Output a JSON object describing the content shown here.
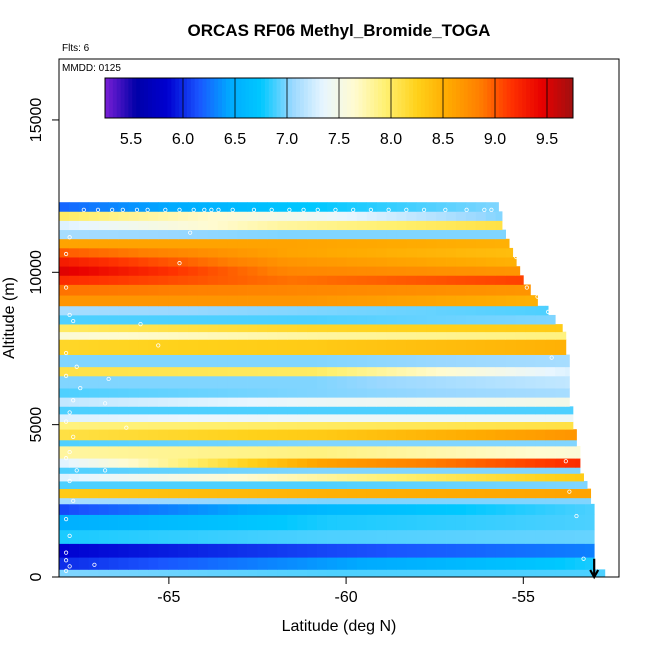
{
  "chart_data": {
    "type": "heatmap",
    "title": "ORCAS RF06 Methyl_Bromide_TOGA",
    "xlabel": "Latitude (deg N)",
    "ylabel": "Altitude (m)",
    "xlim": [
      -68.1,
      -52.3
    ],
    "ylim": [
      0,
      17000
    ],
    "x_ticks": [
      -65,
      -60,
      -55
    ],
    "x_tick_labels": [
      "-65",
      "-60",
      "-55"
    ],
    "y_ticks": [
      0,
      5000,
      10000,
      15000
    ],
    "y_tick_labels": [
      "0",
      "5000",
      "10000",
      "15000"
    ],
    "annotations": {
      "flights": "Flts: 6",
      "date": "MMDD: 0125"
    },
    "colorbar": {
      "min": 5.25,
      "max": 9.75,
      "tick_values": [
        5.5,
        6.0,
        6.5,
        7.0,
        7.5,
        8.0,
        8.5,
        9.0,
        9.5
      ],
      "tick_labels": [
        "5.5",
        "6.0",
        "6.5",
        "7.0",
        "7.5",
        "8.0",
        "8.5",
        "9.0",
        "9.5"
      ],
      "colors": [
        "#7a1fd6",
        "#0000a8",
        "#0000d0",
        "#1a55ff",
        "#00aaff",
        "#00c8ff",
        "#9ad8ff",
        "#e8f6ff",
        "#fffbd0",
        "#fff070",
        "#ffd11a",
        "#ffaa00",
        "#ff7f00",
        "#ff3300",
        "#e80000",
        "#a01010"
      ],
      "separator_values": [
        6.0,
        6.5,
        7.0,
        7.5,
        8.0,
        8.5,
        9.0,
        9.5
      ]
    },
    "bands": [
      {
        "alt": [
          0,
          250
        ],
        "lat_max": -52.7,
        "values": [
          7.0,
          6.9,
          6.9
        ]
      },
      {
        "alt": [
          250,
          650
        ],
        "lat_max": -53.0,
        "values": [
          6.0,
          6.4,
          6.8
        ]
      },
      {
        "alt": [
          650,
          1100
        ],
        "lat_max": -53.0,
        "values": [
          5.85,
          6.1,
          6.3
        ]
      },
      {
        "alt": [
          1100,
          1550
        ],
        "lat_max": -53.0,
        "values": [
          6.8,
          6.9,
          6.95
        ]
      },
      {
        "alt": [
          1550,
          2050
        ],
        "lat_max": -53.0,
        "values": [
          6.5,
          6.8,
          6.9
        ]
      },
      {
        "alt": [
          2050,
          2400
        ],
        "lat_max": -53.0,
        "values": [
          6.1,
          6.6,
          6.9
        ]
      },
      {
        "alt": [
          2400,
          2600
        ],
        "lat_max": -53.1,
        "values": [
          7.1,
          7.0,
          7.0
        ]
      },
      {
        "alt": [
          2600,
          2900
        ],
        "lat_max": -53.1,
        "values": [
          8.3,
          8.5,
          8.6
        ]
      },
      {
        "alt": [
          2900,
          3150
        ],
        "lat_max": -53.2,
        "values": [
          6.9,
          6.9,
          7.0
        ]
      },
      {
        "alt": [
          3150,
          3400
        ],
        "lat_max": -53.3,
        "values": [
          7.3,
          7.8,
          8.3
        ]
      },
      {
        "alt": [
          3400,
          3600
        ],
        "lat_max": -53.4,
        "values": [
          6.9,
          7.0,
          7.0
        ]
      },
      {
        "alt": [
          3600,
          3900
        ],
        "lat_max": -53.4,
        "values": [
          7.3,
          8.6,
          9.2
        ]
      },
      {
        "alt": [
          3900,
          4300
        ],
        "lat_max": -53.4,
        "values": [
          7.8,
          7.9,
          7.6
        ]
      },
      {
        "alt": [
          4300,
          4500
        ],
        "lat_max": -53.5,
        "values": [
          6.9,
          7.0,
          7.0
        ]
      },
      {
        "alt": [
          4500,
          4850
        ],
        "lat_max": -53.5,
        "values": [
          8.1,
          8.3,
          8.7
        ]
      },
      {
        "alt": [
          4850,
          5100
        ],
        "lat_max": -53.6,
        "values": [
          7.9,
          8.0,
          8.1
        ]
      },
      {
        "alt": [
          5100,
          5350
        ],
        "lat_max": -53.6,
        "values": [
          7.3,
          7.4,
          7.4
        ]
      },
      {
        "alt": [
          5350,
          5600
        ],
        "lat_max": -53.6,
        "values": [
          6.9,
          6.9,
          6.9
        ]
      },
      {
        "alt": [
          5600,
          5900
        ],
        "lat_max": -53.7,
        "values": [
          7.2,
          7.4,
          7.5
        ]
      },
      {
        "alt": [
          5900,
          6200
        ],
        "lat_max": -53.7,
        "values": [
          6.9,
          7.0,
          7.1
        ]
      },
      {
        "alt": [
          6200,
          6600
        ],
        "lat_max": -53.7,
        "values": [
          7.0,
          7.0,
          7.2
        ]
      },
      {
        "alt": [
          6600,
          6900
        ],
        "lat_max": -53.7,
        "values": [
          8.1,
          8.0,
          7.3
        ]
      },
      {
        "alt": [
          6900,
          7300
        ],
        "lat_max": -53.7,
        "values": [
          7.0,
          7.0,
          7.1
        ]
      },
      {
        "alt": [
          7300,
          7800
        ],
        "lat_max": -53.8,
        "values": [
          8.2,
          8.3,
          8.5
        ]
      },
      {
        "alt": [
          7800,
          8050
        ],
        "lat_max": -53.8,
        "values": [
          7.6,
          7.8,
          7.9
        ]
      },
      {
        "alt": [
          8050,
          8300
        ],
        "lat_max": -53.9,
        "values": [
          8.0,
          8.2,
          8.3
        ]
      },
      {
        "alt": [
          8300,
          8600
        ],
        "lat_max": -54.1,
        "values": [
          6.9,
          6.9,
          7.0
        ]
      },
      {
        "alt": [
          8600,
          8900
        ],
        "lat_max": -54.3,
        "values": [
          7.1,
          7.0,
          6.9
        ]
      },
      {
        "alt": [
          8900,
          9250
        ],
        "lat_max": -54.6,
        "values": [
          8.7,
          8.7,
          8.5
        ]
      },
      {
        "alt": [
          9250,
          9600
        ],
        "lat_max": -54.8,
        "values": [
          8.9,
          8.8,
          8.7
        ]
      },
      {
        "alt": [
          9600,
          9900
        ],
        "lat_max": -55.0,
        "values": [
          9.2,
          8.9,
          9.1
        ]
      },
      {
        "alt": [
          9900,
          10200
        ],
        "lat_max": -55.1,
        "values": [
          9.5,
          8.8,
          8.7
        ]
      },
      {
        "alt": [
          10200,
          10500
        ],
        "lat_max": -55.2,
        "values": [
          9.3,
          8.7,
          8.5
        ]
      },
      {
        "alt": [
          10500,
          10800
        ],
        "lat_max": -55.3,
        "values": [
          9.0,
          8.6,
          8.4
        ]
      },
      {
        "alt": [
          10800,
          11100
        ],
        "lat_max": -55.4,
        "values": [
          8.6,
          8.6,
          8.5
        ]
      },
      {
        "alt": [
          11100,
          11400
        ],
        "lat_max": -55.5,
        "values": [
          7.1,
          7.0,
          7.0
        ]
      },
      {
        "alt": [
          11400,
          11700
        ],
        "lat_max": -55.6,
        "values": [
          7.3,
          7.8,
          8.1
        ]
      },
      {
        "alt": [
          11700,
          12000
        ],
        "lat_max": -55.6,
        "values": [
          8.0,
          7.5,
          7.0
        ]
      },
      {
        "alt": [
          12000,
          12300
        ],
        "lat_max": -55.7,
        "values": [
          6.2,
          6.7,
          7.0
        ]
      }
    ],
    "sample_points": [
      [
        -67.9,
        200
      ],
      [
        -67.8,
        350
      ],
      [
        -67.9,
        550
      ],
      [
        -67.9,
        800
      ],
      [
        -67.8,
        1350
      ],
      [
        -67.9,
        1900
      ],
      [
        -67.7,
        2500
      ],
      [
        -67.8,
        3150
      ],
      [
        -67.6,
        3500
      ],
      [
        -67.9,
        3900
      ],
      [
        -67.8,
        4100
      ],
      [
        -67.7,
        4600
      ],
      [
        -67.9,
        5100
      ],
      [
        -67.8,
        5400
      ],
      [
        -67.7,
        5800
      ],
      [
        -67.5,
        6200
      ],
      [
        -67.9,
        6600
      ],
      [
        -67.6,
        6900
      ],
      [
        -67.9,
        7350
      ],
      [
        -67.7,
        8400
      ],
      [
        -67.8,
        8600
      ],
      [
        -67.9,
        9500
      ],
      [
        -67.9,
        10600
      ],
      [
        -67.8,
        11150
      ],
      [
        -67.1,
        400
      ],
      [
        -66.8,
        3500
      ],
      [
        -66.8,
        5700
      ],
      [
        -66.7,
        6500
      ],
      [
        -66.2,
        4900
      ],
      [
        -65.8,
        8300
      ],
      [
        -65.3,
        7600
      ],
      [
        -64.7,
        10300
      ],
      [
        -64.4,
        11300
      ],
      [
        -53.3,
        600
      ],
      [
        -53.5,
        2000
      ],
      [
        -53.7,
        2800
      ],
      [
        -53.8,
        3800
      ],
      [
        -54.2,
        7200
      ],
      [
        -54.3,
        8700
      ],
      [
        -54.6,
        9200
      ],
      [
        -54.9,
        9500
      ],
      [
        -55.2,
        10500
      ],
      [
        -55.3,
        11000
      ],
      [
        -55.4,
        11300
      ],
      [
        -55.5,
        11600
      ],
      [
        -67.4,
        12050
      ],
      [
        -67.0,
        12050
      ],
      [
        -66.6,
        12050
      ],
      [
        -66.3,
        12050
      ],
      [
        -65.9,
        12050
      ],
      [
        -65.6,
        12050
      ],
      [
        -65.1,
        12050
      ],
      [
        -64.7,
        12050
      ],
      [
        -64.3,
        12050
      ],
      [
        -64.0,
        12050
      ],
      [
        -63.8,
        12050
      ],
      [
        -63.6,
        12050
      ],
      [
        -63.2,
        12050
      ],
      [
        -62.6,
        12050
      ],
      [
        -62.1,
        12050
      ],
      [
        -61.6,
        12050
      ],
      [
        -61.2,
        12050
      ],
      [
        -60.8,
        12050
      ],
      [
        -60.3,
        12050
      ],
      [
        -59.8,
        12050
      ],
      [
        -59.3,
        12050
      ],
      [
        -58.8,
        12050
      ],
      [
        -58.3,
        12050
      ],
      [
        -57.8,
        12050
      ],
      [
        -57.2,
        12050
      ],
      [
        -56.6,
        12050
      ],
      [
        -56.1,
        12050
      ],
      [
        -55.9,
        12050
      ]
    ],
    "arrow": {
      "lat": -53.0,
      "alt_from": 600,
      "alt_to": 0
    },
    "grid": false,
    "legend_position": "top"
  }
}
